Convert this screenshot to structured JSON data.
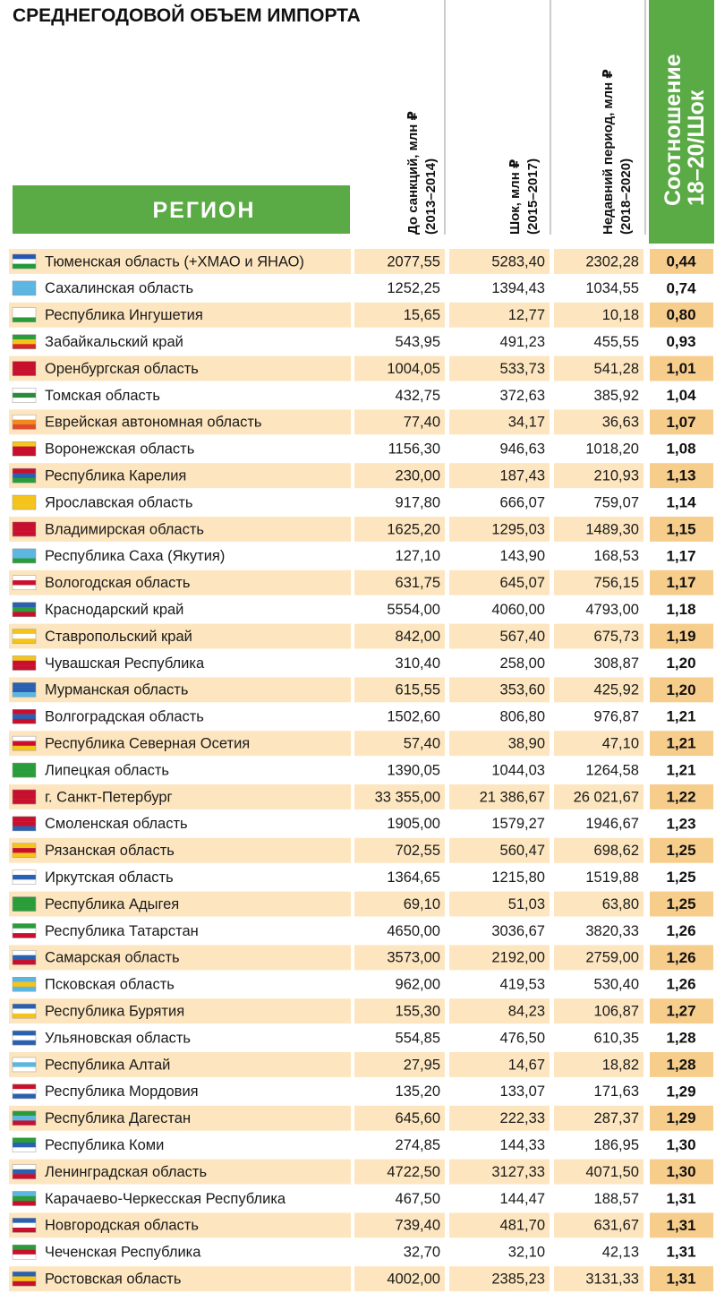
{
  "header": {
    "title": "СРЕДНЕГОДОВОЙ ОБЪЕМ ИМПОРТА",
    "region": "РЕГИОН",
    "columns": [
      {
        "line1": "До санкций, млн ₽",
        "line2": "(2013–2014)"
      },
      {
        "line1": "Шок, млн ₽",
        "line2": "(2015–2017)"
      },
      {
        "line1": "Недавний период, млн ₽",
        "line2": "(2018–2020)"
      }
    ],
    "ratio": {
      "line1": "Соотношение",
      "line2": "18–20/Шок"
    }
  },
  "table": {
    "rows": [
      [
        "Тюменская область (+ХМАО и ЯНАО)",
        "2077,55",
        "5283,40",
        "2302,28",
        "0,44"
      ],
      [
        "Сахалинская область",
        "1252,25",
        "1394,43",
        "1034,55",
        "0,74"
      ],
      [
        "Республика Ингушетия",
        "15,65",
        "12,77",
        "10,18",
        "0,80"
      ],
      [
        "Забайкальский край",
        "543,95",
        "491,23",
        "455,55",
        "0,93"
      ],
      [
        "Оренбургская область",
        "1004,05",
        "533,73",
        "541,28",
        "1,01"
      ],
      [
        "Томская область",
        "432,75",
        "372,63",
        "385,92",
        "1,04"
      ],
      [
        "Еврейская автономная область",
        "77,40",
        "34,17",
        "36,63",
        "1,07"
      ],
      [
        "Воронежская область",
        "1156,30",
        "946,63",
        "1018,20",
        "1,08"
      ],
      [
        "Республика Карелия",
        "230,00",
        "187,43",
        "210,93",
        "1,13"
      ],
      [
        "Ярославская область",
        "917,80",
        "666,07",
        "759,07",
        "1,14"
      ],
      [
        "Владимирская область",
        "1625,20",
        "1295,03",
        "1489,30",
        "1,15"
      ],
      [
        "Республика Саха (Якутия)",
        "127,10",
        "143,90",
        "168,53",
        "1,17"
      ],
      [
        "Вологодская область",
        "631,75",
        "645,07",
        "756,15",
        "1,17"
      ],
      [
        "Краснодарский край",
        "5554,00",
        "4060,00",
        "4793,00",
        "1,18"
      ],
      [
        "Ставропольский край",
        "842,00",
        "567,40",
        "675,73",
        "1,19"
      ],
      [
        "Чувашская Республика",
        "310,40",
        "258,00",
        "308,87",
        "1,20"
      ],
      [
        "Мурманская область",
        "615,55",
        "353,60",
        "425,92",
        "1,20"
      ],
      [
        "Волгоградская область",
        "1502,60",
        "806,80",
        "976,87",
        "1,21"
      ],
      [
        "Республика Северная Осетия",
        "57,40",
        "38,90",
        "47,10",
        "1,21"
      ],
      [
        "Липецкая область",
        "1390,05",
        "1044,03",
        "1264,58",
        "1,21"
      ],
      [
        "г. Санкт-Петербург",
        "33 355,00",
        "21 386,67",
        "26 021,67",
        "1,22"
      ],
      [
        "Смоленская область",
        "1905,00",
        "1579,27",
        "1946,67",
        "1,23"
      ],
      [
        "Рязанская область",
        "702,55",
        "560,47",
        "698,62",
        "1,25"
      ],
      [
        "Иркутская область",
        "1364,65",
        "1215,80",
        "1519,88",
        "1,25"
      ],
      [
        "Республика Адыгея",
        "69,10",
        "51,03",
        "63,80",
        "1,25"
      ],
      [
        "Республика Татарстан",
        "4650,00",
        "3036,67",
        "3820,33",
        "1,26"
      ],
      [
        "Самарская область",
        "3573,00",
        "2192,00",
        "2759,00",
        "1,26"
      ],
      [
        "Псковская область",
        "962,00",
        "419,53",
        "530,40",
        "1,26"
      ],
      [
        "Республика Бурятия",
        "155,30",
        "84,23",
        "106,87",
        "1,27"
      ],
      [
        "Ульяновская область",
        "554,85",
        "476,50",
        "610,35",
        "1,28"
      ],
      [
        "Республика Алтай",
        "27,95",
        "14,67",
        "18,82",
        "1,28"
      ],
      [
        "Республика Мордовия",
        "135,20",
        "133,07",
        "171,63",
        "1,29"
      ],
      [
        "Республика Дагестан",
        "645,60",
        "222,33",
        "287,37",
        "1,29"
      ],
      [
        "Республика Коми",
        "274,85",
        "144,33",
        "186,95",
        "1,30"
      ],
      [
        "Ленинградская область",
        "4722,50",
        "3127,33",
        "4071,50",
        "1,30"
      ],
      [
        "Карачаево-Черкесская Республика",
        "467,50",
        "144,47",
        "188,57",
        "1,31"
      ],
      [
        "Новгородская область",
        "739,40",
        "481,70",
        "631,67",
        "1,31"
      ],
      [
        "Чеченская Республика",
        "32,70",
        "32,10",
        "42,13",
        "1,31"
      ],
      [
        "Ростовская область",
        "4002,00",
        "2385,23",
        "3131,33",
        "1,31"
      ]
    ]
  }
}
